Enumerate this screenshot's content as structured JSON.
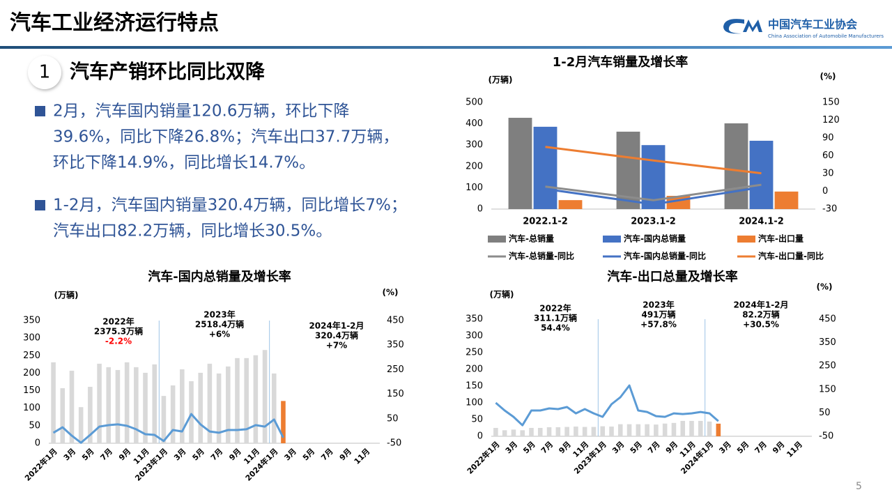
{
  "header": {
    "title": "汽车工业经济运行特点",
    "logo_cn": "中国汽车工业协会",
    "logo_en": "China Association of Automobile Manufacturers"
  },
  "section": {
    "number": "1",
    "heading": "汽车产销环比同比双降"
  },
  "bullets": [
    [
      "2月，汽车国内销量120.6万辆，环比下降",
      "39.6%，同比下降26.8%；汽车出口37.7万辆，",
      "环比下降14.9%，同比增长14.7%。"
    ],
    [
      "1-2月，汽车国内销量320.4万辆，同比增长7%；",
      "汽车出口82.2万辆，同比增长30.5%。"
    ]
  ],
  "page_number": "5",
  "chart_data": [
    {
      "type": "combo",
      "title": "1-2月汽车销量及增长率",
      "y_label": "(万辆)",
      "y2_label": "(%)",
      "categories": [
        "2022.1-2",
        "2023.1-2",
        "2024.1-2"
      ],
      "series": [
        {
          "name": "汽车-总销量",
          "type": "bar",
          "color": "#7f7f7f",
          "values": [
            428,
            363,
            402
          ]
        },
        {
          "name": "汽车-国内总销量",
          "type": "bar",
          "color": "#4472c4",
          "values": [
            386,
            300,
            320.4
          ]
        },
        {
          "name": "汽车-出口量",
          "type": "bar",
          "color": "#ed7d31",
          "values": [
            42,
            62,
            82.2
          ]
        },
        {
          "name": "汽车-总销量-同比",
          "type": "line",
          "axis": "y2",
          "color": "#8c8c8c",
          "values": [
            8,
            -15,
            11
          ]
        },
        {
          "name": "汽车-国内总销量-同比",
          "type": "line",
          "axis": "y2",
          "color": "#4472c4",
          "values": [
            4,
            -22,
            7
          ]
        },
        {
          "name": "汽车-出口量-同比",
          "type": "line",
          "axis": "y2",
          "color": "#ed7d31",
          "values": [
            75,
            52,
            30.5
          ]
        }
      ],
      "ylim": [
        0,
        500
      ],
      "yticks": [
        0,
        100,
        200,
        300,
        400,
        500
      ],
      "y2lim": [
        -30,
        150
      ],
      "y2ticks": [
        -30,
        0,
        30,
        60,
        90,
        120,
        150
      ],
      "grid": false
    },
    {
      "type": "combo",
      "title": "汽车-国内总销量及增长率",
      "y_label": "(万辆)",
      "y2_label": "(%)",
      "categories": [
        "2022年1月",
        null,
        "3月",
        null,
        "5月",
        null,
        "7月",
        null,
        "9月",
        null,
        "11月",
        null,
        "2023年1月",
        null,
        "3月",
        null,
        "5月",
        null,
        "7月",
        null,
        "9月",
        null,
        "11月",
        null,
        "2024年1月",
        null,
        "3月",
        null,
        "5月",
        null,
        "7月",
        null,
        "9月",
        null,
        "11月",
        null
      ],
      "series": [
        {
          "type": "bar",
          "color": "#d9d9d9",
          "values": [
            231,
            157,
            207,
            103,
            161,
            227,
            217,
            209,
            231,
            217,
            201,
            225,
            135,
            165,
            211,
            177,
            201,
            227,
            199,
            219,
            243,
            243,
            251,
            266,
            199,
            null,
            null,
            null,
            null,
            null,
            null,
            null,
            null,
            null,
            null,
            null
          ]
        },
        {
          "type": "bar",
          "color": "#ed7d31",
          "values": [
            null,
            null,
            null,
            null,
            null,
            null,
            null,
            null,
            null,
            null,
            null,
            null,
            null,
            null,
            null,
            null,
            null,
            null,
            null,
            null,
            null,
            null,
            null,
            null,
            null,
            120.6,
            null,
            null,
            null,
            null,
            null,
            null,
            null,
            null,
            null,
            null
          ]
        },
        {
          "type": "line",
          "axis": "y2",
          "color": "#5b9bd5",
          "values": [
            -7,
            15,
            -19,
            -48,
            -16,
            18,
            24,
            27,
            21,
            7,
            -13,
            -16,
            -41,
            4,
            -2,
            69,
            27,
            -2,
            -7,
            4,
            4,
            7,
            24,
            18,
            47,
            -27,
            null,
            null,
            null,
            null,
            null,
            null,
            null,
            null,
            null,
            null
          ]
        }
      ],
      "annotations": [
        [
          "2022年",
          "2375.3万辆",
          {
            "text": "-2.2%",
            "color": "#ff0000"
          }
        ],
        [
          "2023年",
          "2518.4万辆",
          "+6%"
        ],
        [
          "2024年1-2月",
          "320.4万辆",
          "+7%"
        ]
      ],
      "ylim": [
        0,
        350
      ],
      "yticks": [
        0,
        50,
        100,
        150,
        200,
        250,
        300,
        350
      ],
      "y2lim": [
        -50,
        450
      ],
      "y2ticks": [
        -50,
        50,
        150,
        250,
        350,
        450
      ],
      "grid": false
    },
    {
      "type": "combo",
      "title": "汽车-出口总量及增长率",
      "y_label": "(万辆)",
      "y2_label": "(%)",
      "categories": [
        "2022年1月",
        null,
        "3月",
        null,
        "5月",
        null,
        "7月",
        null,
        "9月",
        null,
        "11月",
        null,
        "2023年1月",
        null,
        "3月",
        null,
        "5月",
        null,
        "7月",
        null,
        "9月",
        null,
        "11月",
        null,
        "2024年1月",
        null,
        "3月",
        null,
        "5月",
        null,
        "7月",
        null,
        "9月",
        null,
        "11月",
        null
      ],
      "series": [
        {
          "type": "bar",
          "color": "#d9d9d9",
          "values": [
            25,
            18,
            20,
            18,
            25,
            25,
            27,
            27,
            28,
            29,
            28,
            28,
            30,
            29,
            36,
            36,
            36,
            36,
            35,
            38,
            40,
            46,
            46,
            46,
            44,
            null,
            null,
            null,
            null,
            null,
            null,
            null,
            null,
            null,
            null,
            null
          ]
        },
        {
          "type": "bar",
          "color": "#ed7d31",
          "values": [
            null,
            null,
            null,
            null,
            null,
            null,
            null,
            null,
            null,
            null,
            null,
            null,
            null,
            null,
            null,
            null,
            null,
            null,
            null,
            null,
            null,
            null,
            null,
            null,
            null,
            37.7,
            null,
            null,
            null,
            null,
            null,
            null,
            null,
            null,
            null,
            null
          ]
        },
        {
          "type": "line",
          "axis": "y2",
          "color": "#5b9bd5",
          "values": [
            93,
            60,
            33,
            -3,
            60,
            60,
            69,
            66,
            75,
            48,
            66,
            48,
            33,
            87,
            117,
            167,
            60,
            54,
            36,
            33,
            48,
            45,
            48,
            54,
            48,
            15,
            null,
            null,
            null,
            null,
            null,
            null,
            null,
            null,
            null,
            null
          ]
        }
      ],
      "annotations": [
        [
          "2022年",
          "311.1万辆",
          "54.4%"
        ],
        [
          "2023年",
          "491万辆",
          "+57.8%"
        ],
        [
          "2024年1-2月",
          "82.2万辆",
          "+30.5%"
        ]
      ],
      "ylim": [
        0,
        350
      ],
      "yticks": [
        0,
        50,
        100,
        150,
        200,
        250,
        300,
        350
      ],
      "y2lim": [
        -50,
        450
      ],
      "y2ticks": [
        -50,
        50,
        150,
        250,
        350,
        450
      ],
      "grid": false
    }
  ]
}
